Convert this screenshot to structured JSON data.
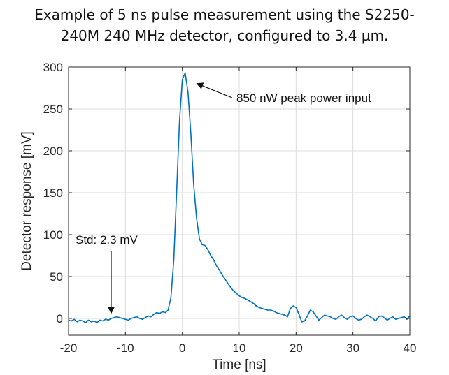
{
  "title_lines": [
    "Example of 5 ns pulse measurement using the S2250-",
    "240M 240 MHz detector, configured to 3.4 µm."
  ],
  "chart_data": {
    "type": "line",
    "title": "Example of 5 ns pulse measurement using the S2250-240M 240 MHz detector, configured to 3.4 µm.",
    "xlabel": "Time [ns]",
    "ylabel": "Detector response [mV]",
    "xlim": [
      -20,
      40
    ],
    "ylim": [
      -20,
      300
    ],
    "xticks": [
      -20,
      -10,
      0,
      10,
      20,
      30,
      40
    ],
    "yticks": [
      0,
      50,
      100,
      150,
      200,
      250,
      300
    ],
    "grid": true,
    "line_color": "#0072BD",
    "series": [
      {
        "name": "Detector response",
        "x": [
          -20,
          -19.5,
          -19,
          -18.5,
          -18,
          -17.5,
          -17,
          -16.5,
          -16,
          -15.5,
          -15,
          -14.5,
          -14,
          -13.5,
          -13,
          -12.5,
          -12,
          -11.5,
          -11,
          -10.5,
          -10,
          -9.5,
          -9,
          -8.5,
          -8,
          -7.5,
          -7,
          -6.5,
          -6,
          -5.5,
          -5,
          -4.5,
          -4,
          -3.5,
          -3,
          -2.5,
          -2,
          -1.5,
          -1,
          -0.5,
          0,
          0.5,
          1,
          1.5,
          2,
          2.5,
          3,
          3.5,
          4,
          4.5,
          5,
          5.5,
          6,
          6.5,
          7,
          7.5,
          8,
          8.5,
          9,
          9.5,
          10,
          10.5,
          11,
          11.5,
          12,
          12.5,
          13,
          13.5,
          14,
          14.5,
          15,
          15.5,
          16,
          16.5,
          17,
          17.5,
          18,
          18.5,
          19,
          19.5,
          20,
          20.5,
          21,
          21.5,
          22,
          22.5,
          23,
          23.5,
          24,
          24.5,
          25,
          25.5,
          26,
          26.5,
          27,
          27.5,
          28,
          28.5,
          29,
          29.5,
          30,
          30.5,
          31,
          31.5,
          32,
          32.5,
          33,
          33.5,
          34,
          34.5,
          35,
          35.5,
          36,
          36.5,
          37,
          37.5,
          38,
          38.5,
          39,
          39.5,
          40
        ],
        "y": [
          -2,
          -3,
          -1,
          -4,
          -2,
          -3,
          -5,
          -2,
          -4,
          -3,
          -5,
          -2,
          -3,
          -1,
          -2,
          0,
          1,
          2,
          1,
          0,
          -1,
          -2,
          0,
          1,
          2,
          0,
          -1,
          1,
          3,
          2,
          5,
          7,
          6,
          8,
          7,
          10,
          25,
          70,
          150,
          235,
          285,
          293,
          270,
          220,
          160,
          120,
          95,
          88,
          87,
          82,
          75,
          70,
          63,
          58,
          52,
          47,
          42,
          37,
          33,
          30,
          27,
          25,
          24,
          22,
          20,
          18,
          15,
          13,
          12,
          11,
          10,
          10,
          9,
          7,
          6,
          5,
          4,
          2,
          12,
          15,
          13,
          5,
          -4,
          -3,
          3,
          10,
          8,
          3,
          -2,
          1,
          4,
          3,
          2,
          0,
          -1,
          2,
          4,
          1,
          -1,
          2,
          3,
          0,
          -2,
          -1,
          2,
          4,
          2,
          0,
          -3,
          2,
          3,
          1,
          -2,
          0,
          2,
          -1,
          0,
          1,
          2,
          -1,
          3
        ],
        "peak": {
          "x": 1,
          "y": 294
        }
      }
    ],
    "annotations": [
      {
        "text": "850 nW peak power input",
        "target_x": 1.8,
        "target_y": 282
      },
      {
        "text": "Std: 2.3 mV",
        "target_x": -12.5,
        "target_y": 3
      }
    ]
  }
}
